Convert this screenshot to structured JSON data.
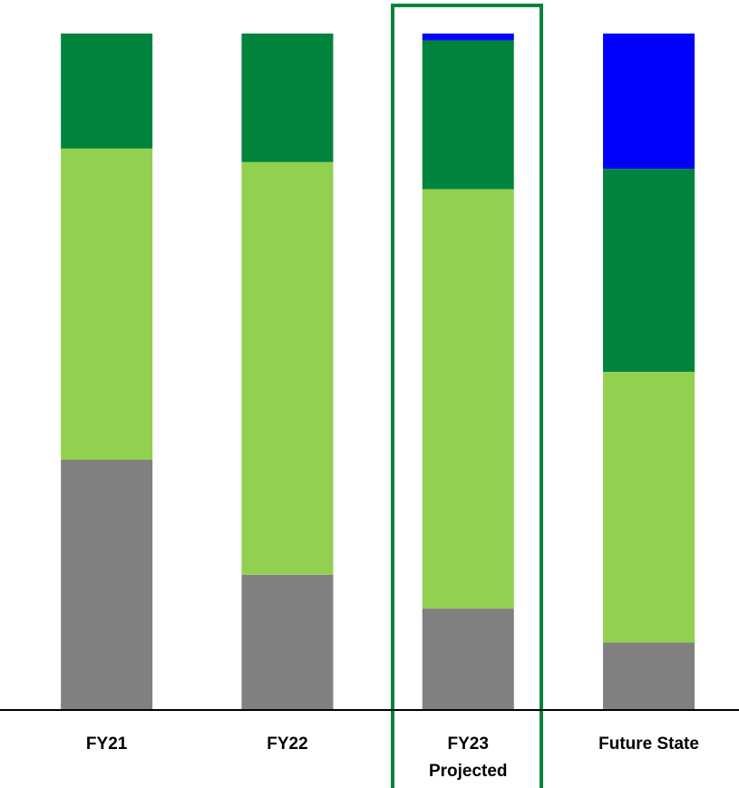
{
  "chart_data": {
    "type": "stacked_bar",
    "categories": [
      "FY21",
      "FY22",
      "FY23\nProjected",
      "Future State"
    ],
    "series": [
      {
        "color": "#808080",
        "values": [
          37,
          20,
          15,
          10
        ]
      },
      {
        "color": "#92d050",
        "values": [
          46,
          61,
          62,
          40
        ]
      },
      {
        "color": "#00843d",
        "values": [
          17,
          19,
          22,
          30
        ]
      },
      {
        "color": "#0000ff",
        "values": [
          0,
          0,
          1,
          20
        ]
      }
    ],
    "ylim": [
      0,
      100
    ],
    "grid": false
  }
}
